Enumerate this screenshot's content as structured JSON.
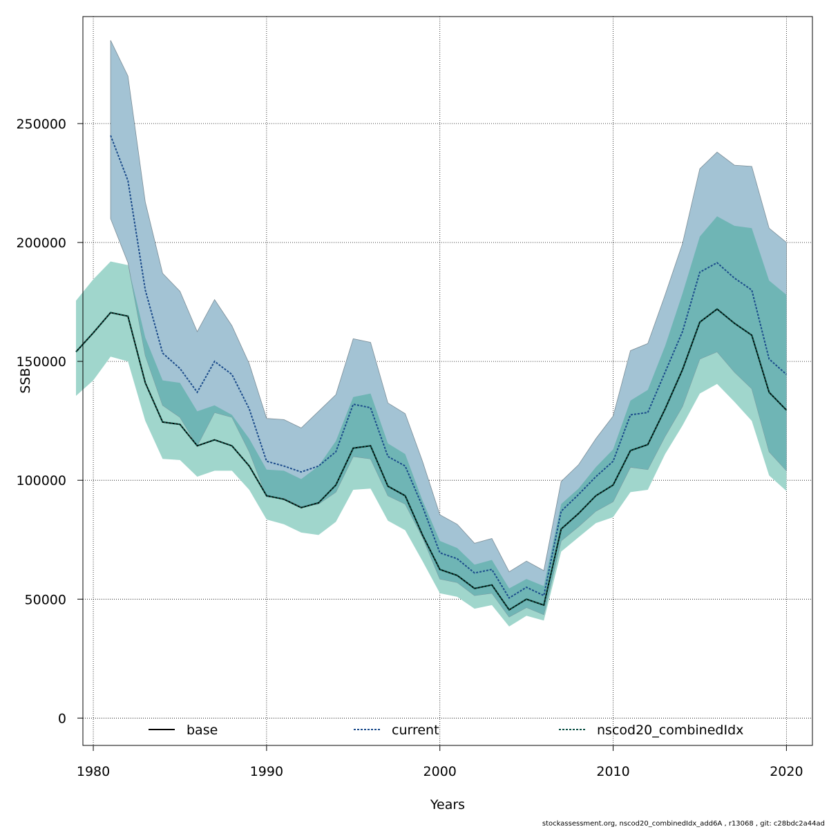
{
  "chart_data": {
    "type": "area",
    "xlabel": "Years",
    "ylabel": "SSB",
    "xlim": [
      1979.4,
      2021.5
    ],
    "ylim": [
      -11500,
      295000
    ],
    "xticks": [
      1980,
      1990,
      2000,
      2010,
      2020
    ],
    "yticks": [
      0,
      50000,
      100000,
      150000,
      200000,
      250000
    ],
    "grid": true,
    "legend_position": "bottom",
    "colors": {
      "current_band": "#a3c3d4",
      "combined_band": "#a0d6cc",
      "overlap_band": "#6fb5b5",
      "current_line": "#1a4a8a",
      "combined_line": "#0b4f44",
      "base_line": "#000000"
    },
    "series": [
      {
        "name": "base",
        "x": [
          1979,
          1980,
          1981,
          1982,
          1983,
          1984,
          1985,
          1986,
          1987,
          1988,
          1989,
          1990,
          1991,
          1992,
          1993,
          1994,
          1995,
          1996,
          1997,
          1998,
          1999,
          2000,
          2001,
          2002,
          2003,
          2004,
          2005,
          2006,
          2007,
          2008,
          2009,
          2010,
          2011,
          2012,
          2013,
          2014,
          2015,
          2016,
          2017,
          2018,
          2019,
          2020
        ],
        "values": [
          154000,
          162000,
          170500,
          169000,
          141000,
          124500,
          123500,
          114500,
          117000,
          114500,
          106000,
          93500,
          92000,
          88500,
          90500,
          98000,
          113500,
          114500,
          97500,
          93500,
          77000,
          62500,
          60000,
          54500,
          56000,
          45500,
          50000,
          47500,
          79500,
          86000,
          93500,
          98000,
          112500,
          115000,
          130000,
          146500,
          166500,
          172000,
          166000,
          161000,
          137000,
          129500
        ],
        "lower": [
          135500,
          142000,
          152000,
          150000,
          125000,
          109000,
          108500,
          101500,
          104000,
          104000,
          96000,
          83500,
          81500,
          78000,
          77000,
          82500,
          96000,
          96500,
          83000,
          79000,
          66000,
          52500,
          51000,
          46000,
          47500,
          38500,
          43000,
          41000,
          70000,
          76000,
          82000,
          84500,
          95000,
          96000,
          111000,
          123000,
          136500,
          140500,
          133000,
          125000,
          102000,
          95500
        ],
        "upper": [
          175500,
          184500,
          192000,
          190500,
          160000,
          142000,
          141000,
          129000,
          131500,
          127500,
          117500,
          104500,
          104000,
          100500,
          106000,
          116500,
          135000,
          136500,
          115500,
          111000,
          91500,
          74500,
          71500,
          64500,
          66500,
          54500,
          58500,
          55500,
          90000,
          96500,
          105500,
          113000,
          133500,
          138000,
          156500,
          178500,
          202500,
          211000,
          207000,
          206000,
          184000,
          178000
        ]
      },
      {
        "name": "current",
        "x": [
          1981,
          1982,
          1983,
          1984,
          1985,
          1986,
          1987,
          1988,
          1989,
          1990,
          1991,
          1992,
          1993,
          1994,
          1995,
          1996,
          1997,
          1998,
          1999,
          2000,
          2001,
          2002,
          2003,
          2004,
          2005,
          2006,
          2007,
          2008,
          2009,
          2010,
          2011,
          2012,
          2013,
          2014,
          2015,
          2016,
          2017,
          2018,
          2019,
          2020
        ],
        "values": [
          245000,
          226000,
          180000,
          153500,
          147000,
          137000,
          150000,
          144500,
          130000,
          108000,
          106000,
          103500,
          106000,
          112000,
          132000,
          130500,
          110000,
          106000,
          89000,
          69500,
          67000,
          61000,
          62500,
          50500,
          55000,
          51500,
          87000,
          94000,
          101500,
          108000,
          127500,
          128500,
          145500,
          162500,
          187500,
          191500,
          185000,
          180000,
          151000,
          144500
        ],
        "lower": [
          210000,
          191500,
          152500,
          131500,
          126500,
          114500,
          128500,
          126500,
          112000,
          93000,
          92500,
          89000,
          90000,
          95000,
          110000,
          109000,
          93500,
          90000,
          76000,
          58500,
          57000,
          51500,
          52500,
          42500,
          46500,
          43500,
          74500,
          80500,
          87000,
          91000,
          105500,
          104500,
          118500,
          131000,
          151000,
          154000,
          145500,
          138500,
          112000,
          104000
        ],
        "upper": [
          285000,
          270000,
          217000,
          187000,
          179500,
          162500,
          176000,
          165000,
          149000,
          126000,
          125500,
          122000,
          129000,
          136000,
          159500,
          158000,
          132500,
          128000,
          108000,
          85500,
          81500,
          73500,
          75500,
          61500,
          66000,
          62000,
          99500,
          106500,
          117500,
          127000,
          154500,
          157500,
          178000,
          199500,
          231000,
          238000,
          232500,
          232000,
          206000,
          200000
        ]
      },
      {
        "name": "nscod20_combinedIdx",
        "x": [
          1979,
          1980,
          1981,
          1982,
          1983,
          1984,
          1985,
          1986,
          1987,
          1988,
          1989,
          1990,
          1991,
          1992,
          1993,
          1994,
          1995,
          1996,
          1997,
          1998,
          1999,
          2000,
          2001,
          2002,
          2003,
          2004,
          2005,
          2006,
          2007,
          2008,
          2009,
          2010,
          2011,
          2012,
          2013,
          2014,
          2015,
          2016,
          2017,
          2018,
          2019,
          2020
        ],
        "values": [
          154000,
          162000,
          170500,
          169000,
          141000,
          124500,
          123500,
          114500,
          117000,
          114500,
          106000,
          93500,
          92000,
          88500,
          90500,
          98000,
          113500,
          114500,
          97500,
          93500,
          77000,
          62500,
          60000,
          54500,
          56000,
          45500,
          50000,
          47500,
          79500,
          86000,
          93500,
          98000,
          112500,
          115000,
          130000,
          146500,
          166500,
          172000,
          166000,
          161000,
          137000,
          129500
        ],
        "lower": [
          135500,
          142000,
          152000,
          150000,
          125000,
          109000,
          108500,
          101500,
          104000,
          104000,
          96000,
          83500,
          81500,
          78000,
          77000,
          82500,
          96000,
          96500,
          83000,
          79000,
          66000,
          52500,
          51000,
          46000,
          47500,
          38500,
          43000,
          41000,
          70000,
          76000,
          82000,
          84500,
          95000,
          96000,
          111000,
          123000,
          136500,
          140500,
          133000,
          125000,
          102000,
          95500
        ],
        "upper": [
          175500,
          184500,
          192000,
          190500,
          160000,
          142000,
          141000,
          129000,
          131500,
          127500,
          117500,
          104500,
          104000,
          100500,
          106000,
          116500,
          135000,
          136500,
          115500,
          111000,
          91500,
          74500,
          71500,
          64500,
          66500,
          54500,
          58500,
          55500,
          90000,
          96500,
          105500,
          113000,
          133500,
          138000,
          156500,
          178500,
          202500,
          211000,
          207000,
          206000,
          184000,
          178000
        ]
      }
    ]
  },
  "footer": "stockassessment.org, nscod20_combinedIdx_add6A , r13068 , git: c28bdc2a44ad"
}
